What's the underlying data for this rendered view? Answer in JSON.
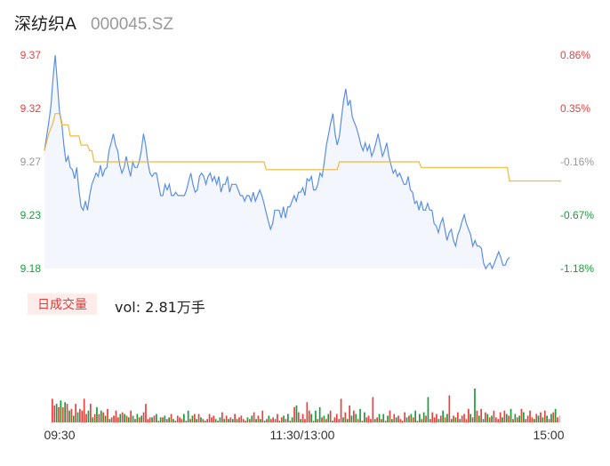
{
  "header": {
    "name": "深纺织A",
    "code": "000045.SZ"
  },
  "volume_panel": {
    "label": "日成交量",
    "value": "vol: 2.81万手"
  },
  "colors": {
    "up": "#e8413e",
    "down": "#1a9c3a",
    "neutral": "#999999",
    "price_line": "#5b8fe6",
    "avg_line": "#f0b93a",
    "area": "#f3f6fc"
  },
  "chart_data": [
    {
      "type": "line",
      "name": "intraday-price",
      "y_left_ticks": [
        "9.37",
        "9.32",
        "9.27",
        "9.23",
        "9.18"
      ],
      "y_right_ticks": [
        "0.86%",
        "0.35%",
        "-0.16%",
        "-0.67%",
        "-1.18%"
      ],
      "ylim": [
        9.18,
        9.37
      ],
      "x_ticks": [
        "09:30",
        "11:30/13:00",
        "15:00"
      ],
      "minutes": 240,
      "price_keypoints": [
        [
          0,
          9.285
        ],
        [
          2,
          9.31
        ],
        [
          3,
          9.325
        ],
        [
          4,
          9.35
        ],
        [
          5,
          9.37
        ],
        [
          6,
          9.345
        ],
        [
          7,
          9.32
        ],
        [
          8,
          9.31
        ],
        [
          9,
          9.29
        ],
        [
          10,
          9.275
        ],
        [
          11,
          9.28
        ],
        [
          12,
          9.27
        ],
        [
          13,
          9.268
        ],
        [
          14,
          9.26
        ],
        [
          15,
          9.27
        ],
        [
          16,
          9.25
        ],
        [
          17,
          9.235
        ],
        [
          18,
          9.232
        ],
        [
          19,
          9.24
        ],
        [
          20,
          9.232
        ],
        [
          21,
          9.245
        ],
        [
          22,
          9.255
        ],
        [
          23,
          9.26
        ],
        [
          24,
          9.265
        ],
        [
          25,
          9.262
        ],
        [
          26,
          9.272
        ],
        [
          27,
          9.262
        ],
        [
          28,
          9.268
        ],
        [
          29,
          9.27
        ],
        [
          30,
          9.285
        ],
        [
          31,
          9.292
        ],
        [
          32,
          9.3
        ],
        [
          33,
          9.29
        ],
        [
          34,
          9.285
        ],
        [
          35,
          9.272
        ],
        [
          36,
          9.265
        ],
        [
          37,
          9.27
        ],
        [
          38,
          9.28
        ],
        [
          39,
          9.27
        ],
        [
          40,
          9.262
        ],
        [
          41,
          9.275
        ],
        [
          42,
          9.27
        ],
        [
          43,
          9.27
        ],
        [
          44,
          9.275
        ],
        [
          45,
          9.285
        ],
        [
          46,
          9.3
        ],
        [
          47,
          9.29
        ],
        [
          48,
          9.275
        ],
        [
          49,
          9.265
        ],
        [
          50,
          9.262
        ],
        [
          51,
          9.265
        ],
        [
          52,
          9.265
        ],
        [
          53,
          9.255
        ],
        [
          54,
          9.245
        ],
        [
          55,
          9.245
        ],
        [
          56,
          9.255
        ],
        [
          57,
          9.25
        ],
        [
          58,
          9.255
        ],
        [
          59,
          9.245
        ],
        [
          60,
          9.245
        ],
        [
          61,
          9.248
        ],
        [
          62,
          9.245
        ],
        [
          63,
          9.245
        ],
        [
          64,
          9.245
        ],
        [
          65,
          9.245
        ],
        [
          66,
          9.25
        ],
        [
          67,
          9.258
        ],
        [
          68,
          9.265
        ],
        [
          69,
          9.255
        ],
        [
          70,
          9.248
        ],
        [
          71,
          9.25
        ],
        [
          72,
          9.262
        ],
        [
          73,
          9.265
        ],
        [
          74,
          9.262
        ],
        [
          75,
          9.255
        ],
        [
          76,
          9.262
        ],
        [
          77,
          9.265
        ],
        [
          78,
          9.258
        ],
        [
          79,
          9.262
        ],
        [
          80,
          9.255
        ],
        [
          81,
          9.262
        ],
        [
          82,
          9.248
        ],
        [
          83,
          9.255
        ],
        [
          84,
          9.255
        ],
        [
          85,
          9.262
        ],
        [
          86,
          9.248
        ],
        [
          87,
          9.255
        ],
        [
          88,
          9.255
        ],
        [
          89,
          9.255
        ],
        [
          90,
          9.25
        ],
        [
          91,
          9.245
        ],
        [
          92,
          9.245
        ],
        [
          93,
          9.24
        ],
        [
          94,
          9.245
        ],
        [
          95,
          9.245
        ],
        [
          96,
          9.24
        ],
        [
          97,
          9.248
        ],
        [
          98,
          9.24
        ],
        [
          99,
          9.245
        ],
        [
          100,
          9.25
        ],
        [
          101,
          9.245
        ],
        [
          102,
          9.238
        ],
        [
          103,
          9.23
        ],
        [
          104,
          9.222
        ],
        [
          105,
          9.215
        ],
        [
          106,
          9.22
        ],
        [
          107,
          9.232
        ],
        [
          108,
          9.232
        ],
        [
          109,
          9.232
        ],
        [
          110,
          9.225
        ],
        [
          111,
          9.235
        ],
        [
          112,
          9.225
        ],
        [
          113,
          9.235
        ],
        [
          114,
          9.235
        ],
        [
          115,
          9.24
        ],
        [
          116,
          9.245
        ],
        [
          117,
          9.24
        ],
        [
          118,
          9.248
        ],
        [
          119,
          9.248
        ],
        [
          120,
          9.252
        ],
        [
          121,
          9.245
        ],
        [
          122,
          9.26
        ],
        [
          123,
          9.258
        ],
        [
          124,
          9.262
        ],
        [
          125,
          9.25
        ],
        [
          126,
          9.25
        ],
        [
          127,
          9.255
        ],
        [
          128,
          9.265
        ],
        [
          129,
          9.262
        ],
        [
          130,
          9.275
        ],
        [
          131,
          9.29
        ],
        [
          132,
          9.3
        ],
        [
          133,
          9.31
        ],
        [
          134,
          9.318
        ],
        [
          135,
          9.3
        ],
        [
          136,
          9.29
        ],
        [
          137,
          9.298
        ],
        [
          138,
          9.315
        ],
        [
          139,
          9.33
        ],
        [
          140,
          9.34
        ],
        [
          141,
          9.325
        ],
        [
          142,
          9.33
        ],
        [
          143,
          9.315
        ],
        [
          144,
          9.31
        ],
        [
          145,
          9.305
        ],
        [
          146,
          9.298
        ],
        [
          147,
          9.29
        ],
        [
          148,
          9.285
        ],
        [
          149,
          9.292
        ],
        [
          150,
          9.285
        ],
        [
          151,
          9.29
        ],
        [
          152,
          9.28
        ],
        [
          153,
          9.285
        ],
        [
          154,
          9.292
        ],
        [
          155,
          9.3
        ],
        [
          156,
          9.29
        ],
        [
          157,
          9.28
        ],
        [
          158,
          9.285
        ],
        [
          159,
          9.292
        ],
        [
          160,
          9.28
        ],
        [
          161,
          9.272
        ],
        [
          162,
          9.265
        ],
        [
          163,
          9.268
        ],
        [
          164,
          9.262
        ],
        [
          165,
          9.265
        ],
        [
          166,
          9.26
        ],
        [
          167,
          9.255
        ],
        [
          168,
          9.255
        ],
        [
          169,
          9.262
        ],
        [
          170,
          9.25
        ],
        [
          171,
          9.248
        ],
        [
          172,
          9.238
        ],
        [
          173,
          9.24
        ],
        [
          174,
          9.232
        ],
        [
          175,
          9.24
        ],
        [
          176,
          9.232
        ],
        [
          177,
          9.232
        ],
        [
          178,
          9.238
        ],
        [
          179,
          9.232
        ],
        [
          180,
          9.232
        ],
        [
          181,
          9.22
        ],
        [
          182,
          9.218
        ],
        [
          183,
          9.212
        ],
        [
          184,
          9.22
        ],
        [
          185,
          9.225
        ],
        [
          186,
          9.215
        ],
        [
          187,
          9.205
        ],
        [
          188,
          9.212
        ],
        [
          189,
          9.215
        ],
        [
          190,
          9.205
        ],
        [
          191,
          9.2
        ],
        [
          192,
          9.21
        ],
        [
          193,
          9.215
        ],
        [
          194,
          9.222
        ],
        [
          195,
          9.228
        ],
        [
          196,
          9.22
        ],
        [
          197,
          9.215
        ],
        [
          198,
          9.21
        ],
        [
          199,
          9.2
        ],
        [
          200,
          9.205
        ],
        [
          201,
          9.2
        ],
        [
          202,
          9.2
        ],
        [
          203,
          9.198
        ],
        [
          204,
          9.185
        ],
        [
          205,
          9.18
        ],
        [
          206,
          9.183
        ],
        [
          207,
          9.185
        ],
        [
          208,
          9.18
        ],
        [
          209,
          9.185
        ],
        [
          210,
          9.19
        ],
        [
          211,
          9.195
        ],
        [
          212,
          9.19
        ],
        [
          213,
          9.183
        ],
        [
          214,
          9.183
        ],
        [
          215,
          9.188
        ],
        [
          216,
          9.19
        ]
      ],
      "avg_keypoints": [
        [
          0,
          9.285
        ],
        [
          2,
          9.3
        ],
        [
          4,
          9.31
        ],
        [
          5,
          9.318
        ],
        [
          7,
          9.318
        ],
        [
          8,
          9.308
        ],
        [
          11,
          9.308
        ],
        [
          12,
          9.298
        ],
        [
          16,
          9.298
        ],
        [
          17,
          9.29
        ],
        [
          20,
          9.29
        ],
        [
          21,
          9.285
        ],
        [
          22,
          9.285
        ],
        [
          23,
          9.275
        ],
        [
          102,
          9.275
        ],
        [
          103,
          9.268
        ],
        [
          136,
          9.268
        ],
        [
          137,
          9.275
        ],
        [
          174,
          9.275
        ],
        [
          175,
          9.27
        ],
        [
          215,
          9.27
        ],
        [
          216,
          9.258
        ],
        [
          240,
          9.258
        ]
      ]
    },
    {
      "type": "bar",
      "name": "volume",
      "ylim": [
        0,
        100
      ],
      "values_up_down": "generated per-minute; heights in relative units",
      "values": [
        28,
        20,
        22,
        18,
        26,
        18,
        24,
        22,
        14,
        16,
        8,
        22,
        12,
        16,
        14,
        28,
        10,
        14,
        22,
        6,
        10,
        18,
        10,
        14,
        12,
        8,
        16,
        4,
        6,
        8,
        14,
        6,
        10,
        12,
        10,
        8,
        6,
        14,
        8,
        4,
        10,
        6,
        8,
        12,
        22,
        4,
        6,
        6,
        8,
        10,
        2,
        6,
        6,
        8,
        4,
        6,
        10,
        4,
        2,
        8,
        6,
        4,
        10,
        2,
        14,
        4,
        8,
        10,
        4,
        10,
        6,
        4,
        2,
        4,
        10,
        6,
        8,
        4,
        2,
        6,
        12,
        4,
        8,
        4,
        6,
        4,
        10,
        4,
        6,
        8,
        4,
        2,
        6,
        4,
        8,
        12,
        4,
        8,
        4,
        14,
        2,
        4,
        8,
        4,
        6,
        4,
        10,
        2,
        6,
        8,
        4,
        10,
        2,
        6,
        18,
        20,
        12,
        4,
        10,
        4,
        24,
        14,
        10,
        2,
        14,
        4,
        18,
        6,
        8,
        4,
        10,
        14,
        2,
        6,
        10,
        4,
        28,
        6,
        12,
        4,
        20,
        8,
        14,
        10,
        4,
        16,
        2,
        12,
        6,
        8,
        4,
        30,
        4,
        6,
        10,
        4,
        10,
        2,
        8,
        14,
        4,
        10,
        6,
        8,
        4,
        2,
        12,
        6,
        8,
        10,
        6,
        14,
        2,
        10,
        4,
        12,
        8,
        30,
        4,
        12,
        6,
        10,
        4,
        8,
        14,
        6,
        10,
        32,
        4,
        8,
        6,
        12,
        4,
        8,
        10,
        4,
        16,
        10,
        6,
        40,
        14,
        8,
        16,
        4,
        12,
        10,
        6,
        8,
        14,
        6,
        4,
        12,
        6,
        14,
        10,
        8,
        16,
        4,
        10,
        6,
        8,
        16,
        12,
        4,
        8,
        14,
        6,
        4,
        10,
        8,
        12,
        6,
        14,
        8,
        4,
        10,
        12,
        16,
        6,
        8
      ],
      "colors_pattern": "alternating"
    }
  ]
}
